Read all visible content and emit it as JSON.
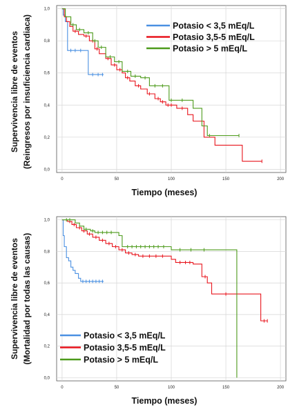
{
  "colors": {
    "low": "#4a90e2",
    "mid": "#e8141c",
    "high": "#4c9a1a",
    "grid": "#d6d6d6",
    "frame": "#555555"
  },
  "chart_data": [
    {
      "type": "line",
      "step": true,
      "xlabel": "Tiempo (meses)",
      "ylabel": [
        "Supervivencia libre de eventos",
        "(Reingresos por insuficiencia cardiaca)"
      ],
      "xlim": [
        -5,
        205
      ],
      "ylim": [
        -0.02,
        1.02
      ],
      "xticks": [
        0,
        50,
        100,
        150,
        200
      ],
      "yticks": [
        0.0,
        0.2,
        0.4,
        0.6,
        0.8,
        1.0
      ],
      "ytick_labels": [
        "0,0",
        "0,2",
        "0,4",
        "0,6",
        "0,8",
        "1,0"
      ],
      "grid": true,
      "legend_position": "top-right",
      "series": [
        {
          "name": "Potasio < 3,5 mEq/L",
          "color_key": "low",
          "points": [
            [
              0,
              1.0
            ],
            [
              1,
              0.96
            ],
            [
              3,
              0.92
            ],
            [
              5,
              0.74
            ],
            [
              20,
              0.74
            ],
            [
              24,
              0.59
            ],
            [
              38,
              0.59
            ]
          ],
          "censors": [
            [
              8,
              0.74
            ],
            [
              12,
              0.74
            ],
            [
              17,
              0.74
            ],
            [
              28,
              0.59
            ],
            [
              33,
              0.59
            ],
            [
              37,
              0.59
            ]
          ]
        },
        {
          "name": "Potasio 3,5-5 mEq/L",
          "color_key": "mid",
          "points": [
            [
              0,
              1.0
            ],
            [
              2,
              0.95
            ],
            [
              4,
              0.92
            ],
            [
              7,
              0.89
            ],
            [
              10,
              0.86
            ],
            [
              15,
              0.84
            ],
            [
              20,
              0.83
            ],
            [
              25,
              0.8
            ],
            [
              30,
              0.75
            ],
            [
              34,
              0.72
            ],
            [
              40,
              0.69
            ],
            [
              45,
              0.65
            ],
            [
              50,
              0.62
            ],
            [
              55,
              0.6
            ],
            [
              58,
              0.57
            ],
            [
              62,
              0.55
            ],
            [
              67,
              0.52
            ],
            [
              72,
              0.5
            ],
            [
              78,
              0.47
            ],
            [
              85,
              0.44
            ],
            [
              90,
              0.42
            ],
            [
              95,
              0.4
            ],
            [
              105,
              0.38
            ],
            [
              115,
              0.34
            ],
            [
              120,
              0.3
            ],
            [
              130,
              0.2
            ],
            [
              140,
              0.15
            ],
            [
              165,
              0.05
            ],
            [
              183,
              0.05
            ]
          ],
          "censors": [
            [
              12,
              0.86
            ],
            [
              22,
              0.83
            ],
            [
              28,
              0.8
            ],
            [
              32,
              0.75
            ],
            [
              42,
              0.69
            ],
            [
              48,
              0.65
            ],
            [
              53,
              0.62
            ],
            [
              60,
              0.57
            ],
            [
              70,
              0.52
            ],
            [
              80,
              0.47
            ],
            [
              88,
              0.44
            ],
            [
              92,
              0.42
            ],
            [
              97,
              0.4
            ],
            [
              100,
              0.4
            ],
            [
              110,
              0.38
            ],
            [
              183,
              0.05
            ]
          ]
        },
        {
          "name": "Potasio > 5 mEq/L",
          "color_key": "high",
          "points": [
            [
              0,
              1.0
            ],
            [
              3,
              0.95
            ],
            [
              8,
              0.9
            ],
            [
              13,
              0.87
            ],
            [
              20,
              0.85
            ],
            [
              28,
              0.8
            ],
            [
              33,
              0.76
            ],
            [
              40,
              0.7
            ],
            [
              48,
              0.67
            ],
            [
              55,
              0.61
            ],
            [
              63,
              0.58
            ],
            [
              72,
              0.57
            ],
            [
              80,
              0.52
            ],
            [
              98,
              0.43
            ],
            [
              120,
              0.38
            ],
            [
              128,
              0.27
            ],
            [
              133,
              0.21
            ],
            [
              162,
              0.21
            ]
          ],
          "censors": [
            [
              10,
              0.9
            ],
            [
              16,
              0.87
            ],
            [
              24,
              0.85
            ],
            [
              30,
              0.8
            ],
            [
              36,
              0.76
            ],
            [
              44,
              0.7
            ],
            [
              52,
              0.67
            ],
            [
              60,
              0.61
            ],
            [
              67,
              0.58
            ],
            [
              76,
              0.57
            ],
            [
              85,
              0.52
            ],
            [
              92,
              0.52
            ],
            [
              100,
              0.43
            ],
            [
              110,
              0.43
            ],
            [
              135,
              0.21
            ],
            [
              162,
              0.21
            ]
          ]
        }
      ]
    },
    {
      "type": "line",
      "step": true,
      "xlabel": "Tiempo (meses)",
      "ylabel": [
        "Supervivencia libre de eventos",
        "(Mortalidad por todas las causas)"
      ],
      "xlim": [
        -5,
        205
      ],
      "ylim": [
        -0.02,
        1.02
      ],
      "xticks": [
        0,
        50,
        100,
        150,
        200
      ],
      "yticks": [
        0.0,
        0.2,
        0.4,
        0.6,
        0.8,
        1.0
      ],
      "ytick_labels": [
        "0,0",
        "0,2",
        "0,4",
        "0,6",
        "0,8",
        "1,0"
      ],
      "grid": true,
      "legend_position": "bottom-left",
      "series": [
        {
          "name": "Potasio < 3,5 mEq/L",
          "color_key": "low",
          "points": [
            [
              0,
              1.0
            ],
            [
              1,
              0.9
            ],
            [
              2,
              0.83
            ],
            [
              4,
              0.76
            ],
            [
              6,
              0.74
            ],
            [
              8,
              0.7
            ],
            [
              10,
              0.68
            ],
            [
              12,
              0.66
            ],
            [
              15,
              0.63
            ],
            [
              17,
              0.61
            ],
            [
              38,
              0.61
            ]
          ],
          "censors": [
            [
              19,
              0.61
            ],
            [
              22,
              0.61
            ],
            [
              25,
              0.61
            ],
            [
              28,
              0.61
            ],
            [
              31,
              0.61
            ],
            [
              34,
              0.61
            ],
            [
              37,
              0.61
            ]
          ]
        },
        {
          "name": "Potasio 3,5-5 mEq/L",
          "color_key": "mid",
          "points": [
            [
              0,
              1.0
            ],
            [
              5,
              0.99
            ],
            [
              9,
              0.97
            ],
            [
              13,
              0.95
            ],
            [
              18,
              0.93
            ],
            [
              23,
              0.91
            ],
            [
              28,
              0.89
            ],
            [
              34,
              0.87
            ],
            [
              40,
              0.85
            ],
            [
              46,
              0.83
            ],
            [
              52,
              0.81
            ],
            [
              58,
              0.79
            ],
            [
              64,
              0.78
            ],
            [
              70,
              0.77
            ],
            [
              98,
              0.77
            ],
            [
              100,
              0.75
            ],
            [
              104,
              0.73
            ],
            [
              120,
              0.72
            ],
            [
              128,
              0.64
            ],
            [
              133,
              0.6
            ],
            [
              137,
              0.53
            ],
            [
              158,
              0.53
            ],
            [
              182,
              0.36
            ],
            [
              188,
              0.36
            ]
          ],
          "censors": [
            [
              7,
              0.99
            ],
            [
              11,
              0.97
            ],
            [
              16,
              0.95
            ],
            [
              20,
              0.93
            ],
            [
              25,
              0.91
            ],
            [
              31,
              0.89
            ],
            [
              37,
              0.87
            ],
            [
              43,
              0.85
            ],
            [
              49,
              0.83
            ],
            [
              55,
              0.81
            ],
            [
              61,
              0.79
            ],
            [
              67,
              0.78
            ],
            [
              74,
              0.77
            ],
            [
              80,
              0.77
            ],
            [
              86,
              0.77
            ],
            [
              92,
              0.77
            ],
            [
              108,
              0.73
            ],
            [
              113,
              0.73
            ],
            [
              117,
              0.73
            ],
            [
              131,
              0.64
            ],
            [
              150,
              0.53
            ],
            [
              185,
              0.36
            ],
            [
              188,
              0.36
            ]
          ]
        },
        {
          "name": "Potasio > 5 mEq/L",
          "color_key": "high",
          "points": [
            [
              0,
              1.0
            ],
            [
              8,
              1.0
            ],
            [
              12,
              0.98
            ],
            [
              16,
              0.96
            ],
            [
              20,
              0.94
            ],
            [
              26,
              0.93
            ],
            [
              30,
              0.92
            ],
            [
              48,
              0.92
            ],
            [
              52,
              0.9
            ],
            [
              55,
              0.83
            ],
            [
              98,
              0.83
            ],
            [
              100,
              0.81
            ],
            [
              160,
              0.81
            ],
            [
              160,
              0.0
            ]
          ],
          "censors": [
            [
              4,
              1.0
            ],
            [
              7,
              1.0
            ],
            [
              22,
              0.94
            ],
            [
              28,
              0.93
            ],
            [
              33,
              0.92
            ],
            [
              37,
              0.92
            ],
            [
              41,
              0.92
            ],
            [
              45,
              0.92
            ],
            [
              60,
              0.83
            ],
            [
              64,
              0.83
            ],
            [
              68,
              0.83
            ],
            [
              72,
              0.83
            ],
            [
              76,
              0.83
            ],
            [
              80,
              0.83
            ],
            [
              84,
              0.83
            ],
            [
              88,
              0.83
            ],
            [
              93,
              0.83
            ],
            [
              108,
              0.81
            ],
            [
              118,
              0.81
            ],
            [
              130,
              0.81
            ]
          ]
        }
      ]
    }
  ]
}
